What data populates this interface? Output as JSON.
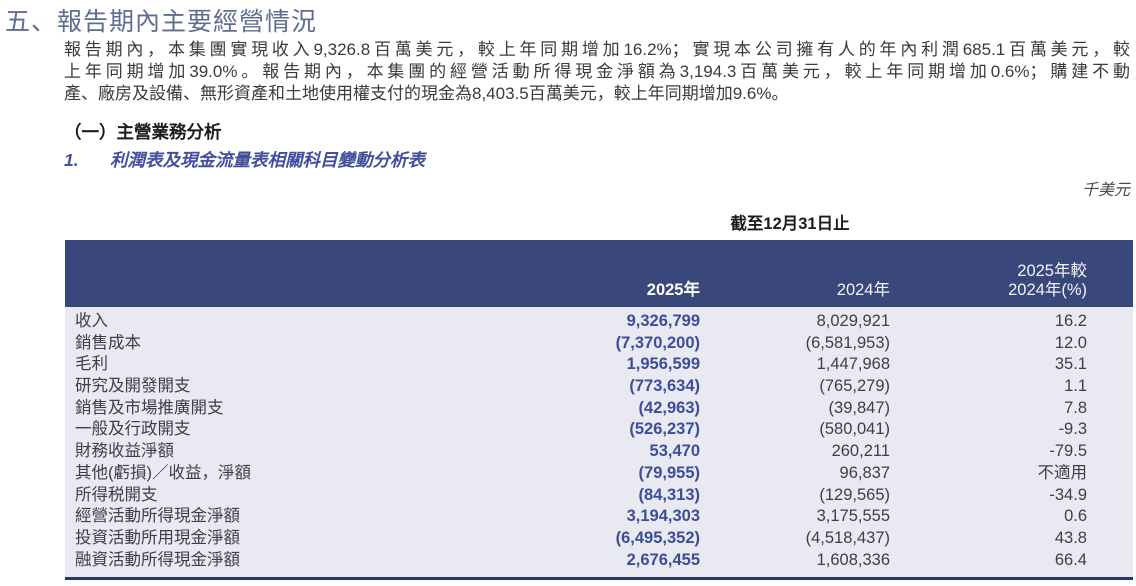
{
  "page": {
    "title": "五、報告期內主要經營情況",
    "intro_lines": [
      "報告期內，本集團實現收入9,326.8百萬美元，較上年同期增加16.2%；實現本公司擁有人的年內利潤685.1百萬美元，較",
      "上年同期增加39.0%。報告期內，本集團的經營活動所得現金淨額為3,194.3百萬美元，較上年同期增加0.6%；購建不動",
      "產、廠房及設備、無形資產和土地使用權支付的現金為8,403.5百萬美元，較上年同期增加9.6%。"
    ],
    "section_heading": "（一）主營業務分析",
    "subsection_number": "1.",
    "subsection_title": "利潤表及現金流量表相關科目變動分析表",
    "unit_label": "千美元",
    "table_caption": "截至12月31日止"
  },
  "table": {
    "header": {
      "y2025": "2025年",
      "y2024": "2024年",
      "change_line1": "2025年較",
      "change_line2": "2024年(%)"
    },
    "rows": [
      {
        "label": "收入",
        "y2025": "9,326,799",
        "y2024": "8,029,921",
        "pct": "16.2"
      },
      {
        "label": "銷售成本",
        "y2025": "(7,370,200)",
        "y2024": "(6,581,953)",
        "pct": "12.0"
      },
      {
        "label": "毛利",
        "y2025": "1,956,599",
        "y2024": "1,447,968",
        "pct": "35.1"
      },
      {
        "label": "研究及開發開支",
        "y2025": "(773,634)",
        "y2024": "(765,279)",
        "pct": "1.1"
      },
      {
        "label": "銷售及市場推廣開支",
        "y2025": "(42,963)",
        "y2024": "(39,847)",
        "pct": "7.8"
      },
      {
        "label": "一般及行政開支",
        "y2025": "(526,237)",
        "y2024": "(580,041)",
        "pct": "-9.3"
      },
      {
        "label": "財務收益淨額",
        "y2025": "53,470",
        "y2024": "260,211",
        "pct": "-79.5"
      },
      {
        "label": "其他(虧損)／收益，淨額",
        "y2025": "(79,955)",
        "y2024": "96,837",
        "pct": "不適用"
      },
      {
        "label": "所得税開支",
        "y2025": "(84,313)",
        "y2024": "(129,565)",
        "pct": "-34.9"
      },
      {
        "label": "經營活動所得現金淨額",
        "y2025": "3,194,303",
        "y2024": "3,175,555",
        "pct": "0.6"
      },
      {
        "label": "投資活動所用現金淨額",
        "y2025": "(6,495,352)",
        "y2024": "(4,518,437)",
        "pct": "43.8"
      },
      {
        "label": "融資活動所得現金淨額",
        "y2025": "2,676,455",
        "y2024": "1,608,336",
        "pct": "66.4"
      }
    ]
  },
  "colors": {
    "header_bg": "#3a477b",
    "table_body_bg": "#e9e9f2",
    "bottom_border": "#2b3667",
    "value_2025_navy": "#3c4e97",
    "title_blue_gray": "#5e6d90",
    "subsection_blue": "#414f9e"
  }
}
